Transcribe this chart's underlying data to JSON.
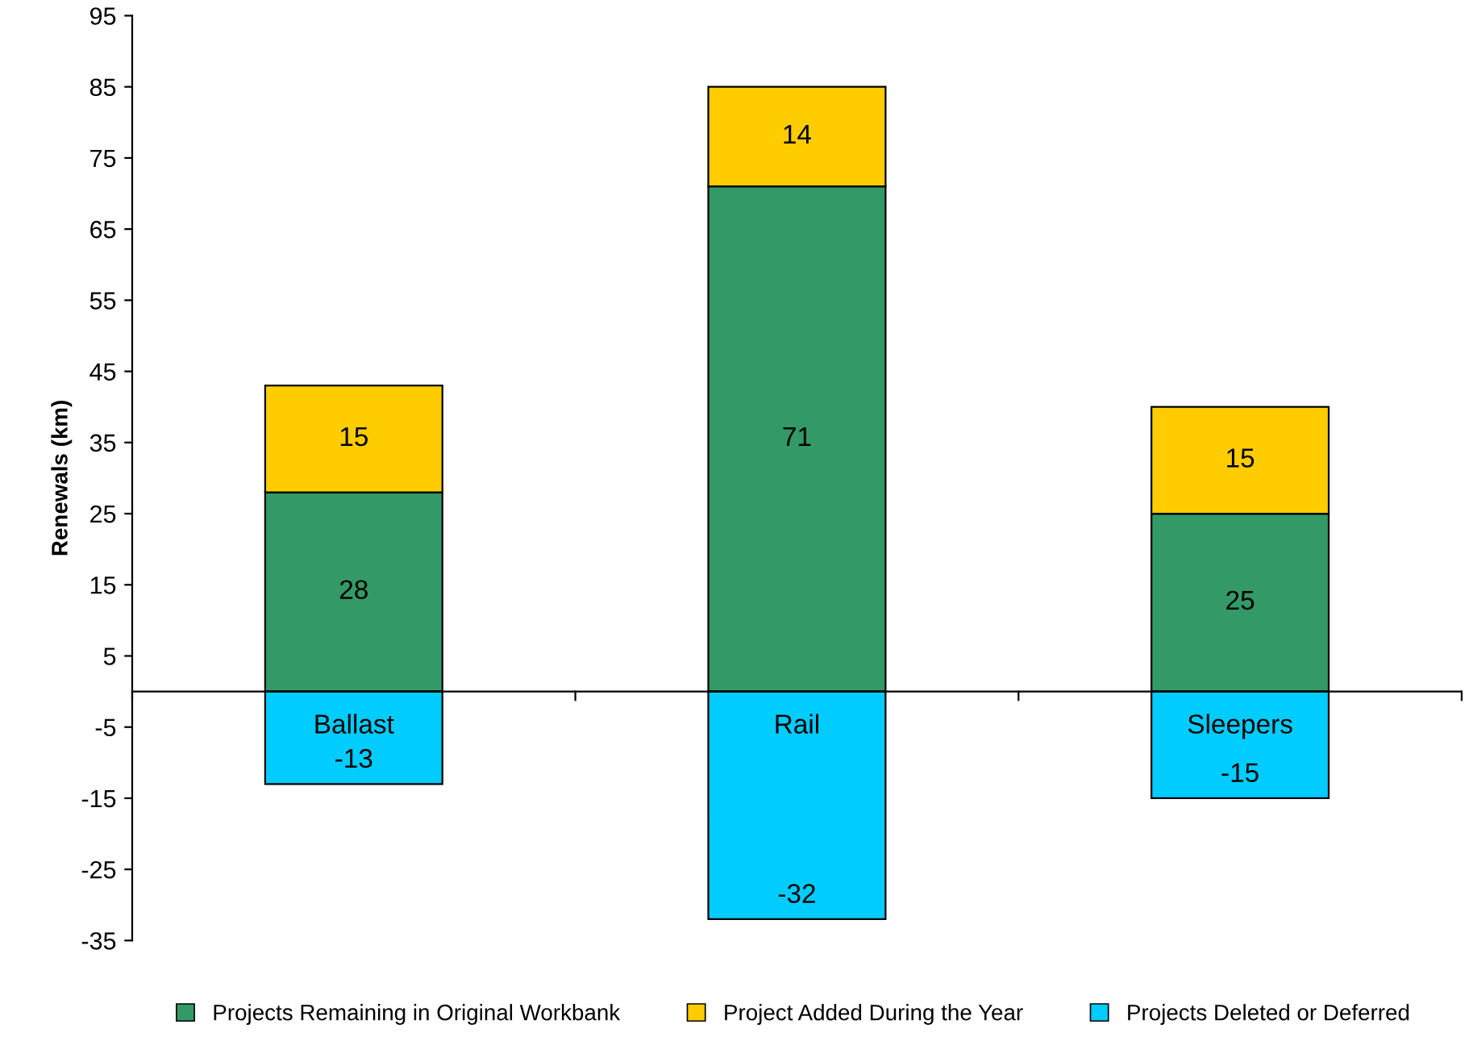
{
  "chart_data": {
    "type": "bar",
    "stacked": true,
    "ylabel": "Renewals (km)",
    "categories": [
      "Ballast",
      "Rail",
      "Sleepers"
    ],
    "series": [
      {
        "name": "Projects Remaining in Original Workbank",
        "color": "#339966",
        "values": [
          28,
          71,
          25
        ]
      },
      {
        "name": "Project Added During the Year",
        "color": "#ffcc00",
        "values": [
          15,
          14,
          15
        ]
      },
      {
        "name": "Projects Deleted or Deferred",
        "color": "#00ccff",
        "values": [
          -13,
          -32,
          -15
        ]
      }
    ],
    "ylim": [
      -35,
      95
    ],
    "yticks": [
      -35,
      -25,
      -15,
      -5,
      5,
      15,
      25,
      35,
      45,
      55,
      65,
      75,
      85,
      95
    ],
    "data_labels": true,
    "grid": false,
    "legend": "bottom"
  }
}
